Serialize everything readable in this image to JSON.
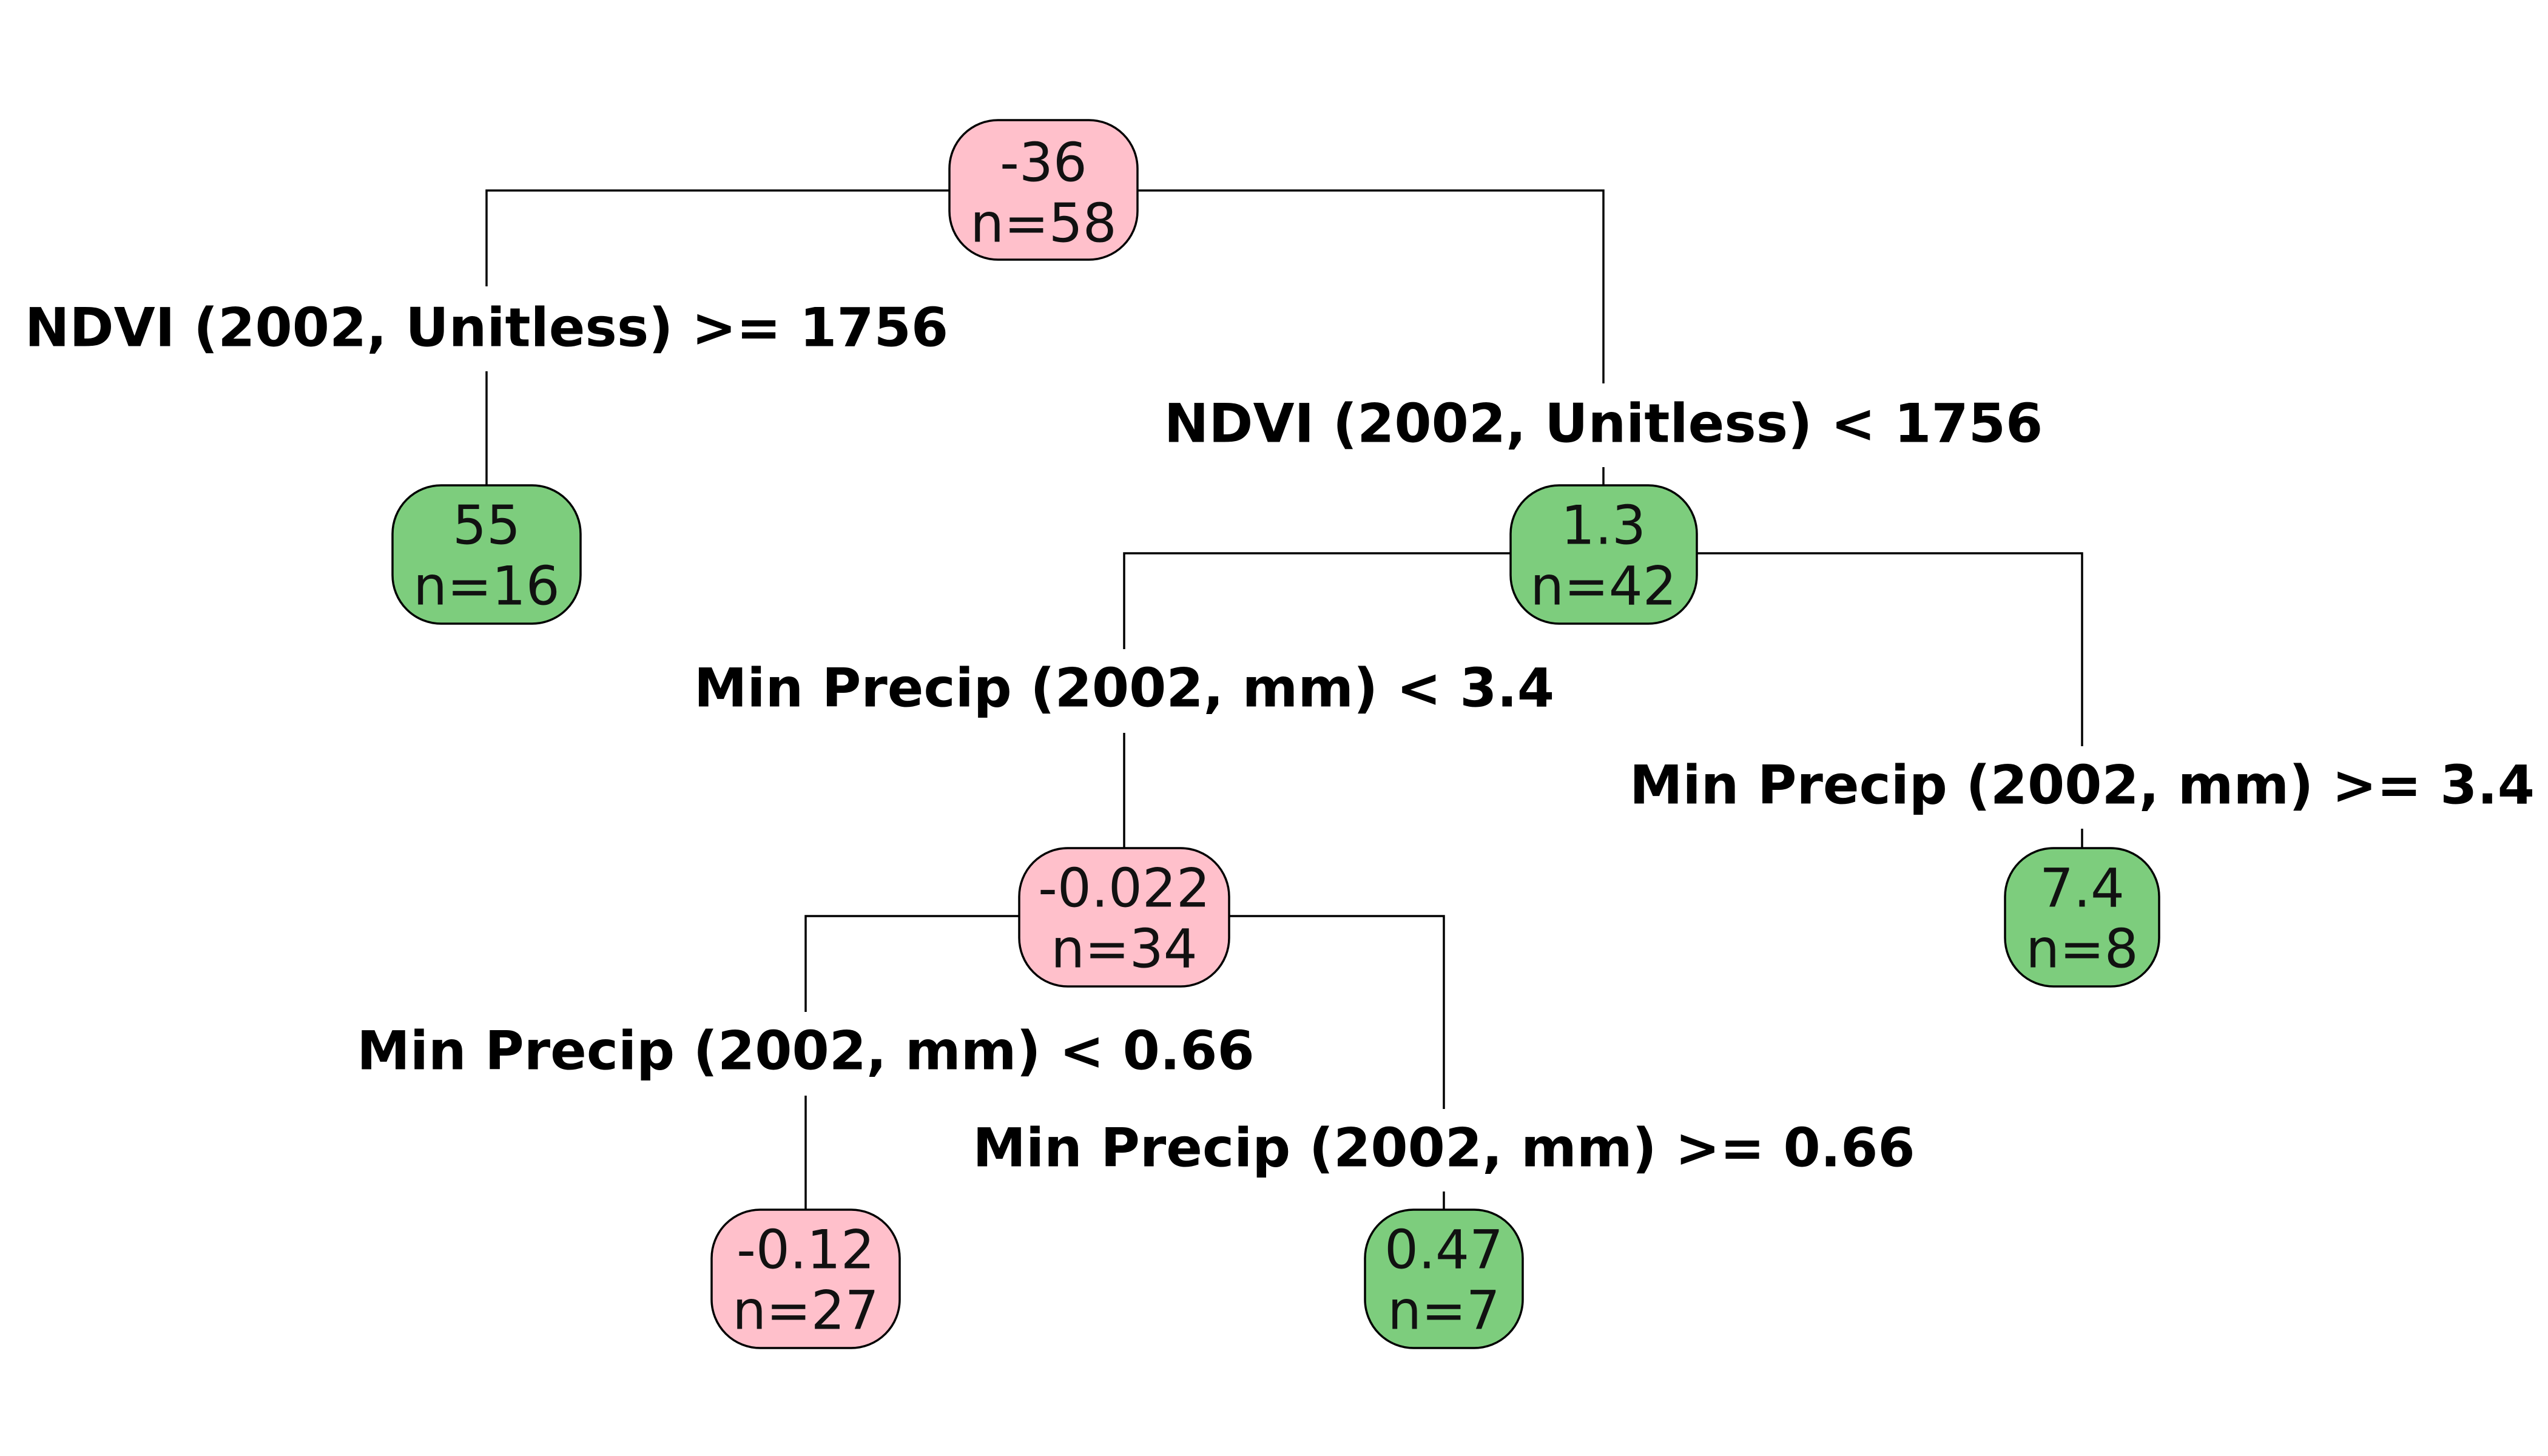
{
  "tree": {
    "colors": {
      "negative": "#ffc0cb",
      "positive": "#7dcd7d"
    },
    "nodes": {
      "root": {
        "value": "-36",
        "n": "n=58",
        "sign": "negative"
      },
      "n1": {
        "value": "55",
        "n": "n=16",
        "sign": "positive"
      },
      "n2": {
        "value": "1.3",
        "n": "n=42",
        "sign": "positive"
      },
      "n3": {
        "value": "-0.022",
        "n": "n=34",
        "sign": "negative"
      },
      "n4": {
        "value": "7.4",
        "n": "n=8",
        "sign": "positive"
      },
      "n5": {
        "value": "-0.12",
        "n": "n=27",
        "sign": "negative"
      },
      "n6": {
        "value": "0.47",
        "n": "n=7",
        "sign": "positive"
      }
    },
    "splits": {
      "root_left": "NDVI (2002, Unitless) >= 1756",
      "root_right": "NDVI (2002, Unitless) < 1756",
      "n2_left": "Min Precip (2002, mm) < 3.4",
      "n2_right": "Min Precip (2002, mm) >= 3.4",
      "n3_left": "Min Precip (2002, mm) < 0.66",
      "n3_right": "Min Precip (2002, mm) >= 0.66"
    }
  }
}
